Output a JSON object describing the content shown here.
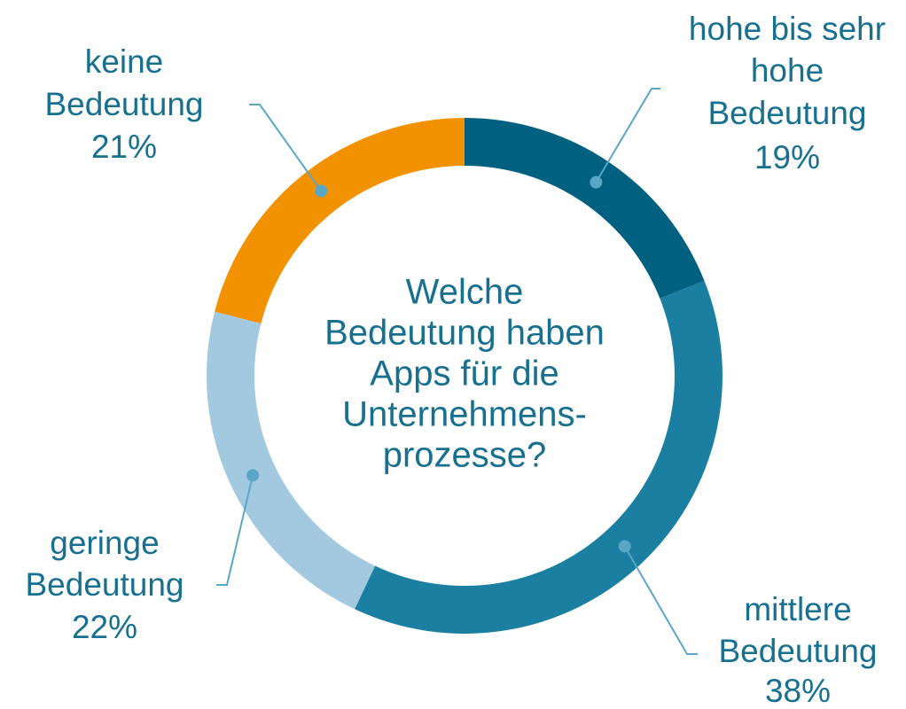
{
  "chart_data": {
    "type": "donut",
    "title": [
      "Welche",
      "Bedeutung haben",
      "Apps für die",
      "Unternehmens-",
      "prozesse?"
    ],
    "categories": [
      [
        "hohe bis sehr",
        "hohe",
        "Bedeutung"
      ],
      [
        "mittlere",
        "Bedeutung"
      ],
      [
        "geringe",
        "Bedeutung"
      ],
      [
        "keine",
        "Bedeutung"
      ]
    ],
    "values": [
      19,
      38,
      22,
      21
    ],
    "value_labels": [
      "19%",
      "38%",
      "22%",
      "21%"
    ],
    "colors": [
      "#00607f",
      "#1a7fa0",
      "#a3c9e0",
      "#f39200"
    ]
  }
}
